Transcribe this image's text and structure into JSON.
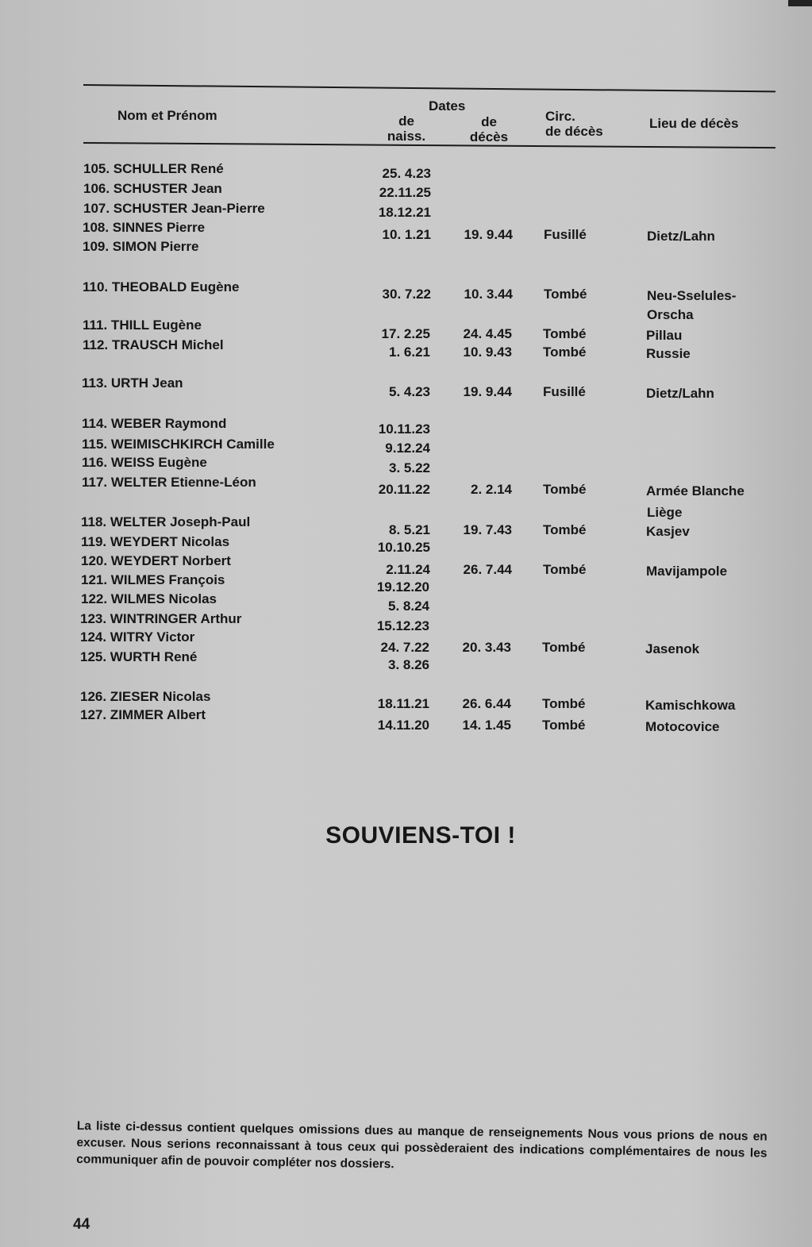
{
  "table": {
    "headers": {
      "name": "Nom et Prénom",
      "dates": "Dates",
      "birth_line1": "de",
      "birth_line2": "naiss.",
      "death_line1": "de",
      "death_line2": "décès",
      "circ_line1": "Circ.",
      "circ_line2": "de décès",
      "place": "Lieu de décès"
    },
    "rows": [
      {
        "name": "105. SCHULLER René",
        "birth": "25. 4.23",
        "death": "",
        "circ": "",
        "place": ""
      },
      {
        "name": "106. SCHUSTER Jean",
        "birth": "22.11.25",
        "death": "",
        "circ": "",
        "place": ""
      },
      {
        "name": "107. SCHUSTER Jean-Pierre",
        "birth": "18.12.21",
        "death": "",
        "circ": "",
        "place": ""
      },
      {
        "name": "108. SINNES Pierre",
        "birth": "10. 1.21",
        "death": "19. 9.44",
        "circ": "Fusillé",
        "place": "Dietz/Lahn"
      },
      {
        "name": "109. SIMON Pierre",
        "birth": "",
        "death": "",
        "circ": "",
        "place": ""
      },
      {
        "name": "110. THEOBALD Eugène",
        "birth": "30. 7.22",
        "death": "10. 3.44",
        "circ": "Tombé",
        "place": "Neu-Sselules-",
        "place2": "Orscha"
      },
      {
        "name": "111. THILL Eugène",
        "birth": "17. 2.25",
        "death": "24. 4.45",
        "circ": "Tombé",
        "place": "Pillau"
      },
      {
        "name": "112. TRAUSCH Michel",
        "birth": "1. 6.21",
        "death": "10. 9.43",
        "circ": "Tombé",
        "place": "Russie"
      },
      {
        "name": "113. URTH Jean",
        "birth": "5. 4.23",
        "death": "19. 9.44",
        "circ": "Fusillé",
        "place": "Dietz/Lahn"
      },
      {
        "name": "114. WEBER Raymond",
        "birth": "10.11.23",
        "death": "",
        "circ": "",
        "place": ""
      },
      {
        "name": "115. WEIMISCHKIRCH Camille",
        "birth": "9.12.24",
        "death": "",
        "circ": "",
        "place": ""
      },
      {
        "name": "116. WEISS Eugène",
        "birth": "3. 5.22",
        "death": "",
        "circ": "",
        "place": ""
      },
      {
        "name": "117. WELTER Etienne-Léon",
        "birth": "20.11.22",
        "death": "2. 2.14",
        "circ": "Tombé",
        "place": "Armée Blanche",
        "place2": "Liège"
      },
      {
        "name": "118. WELTER Joseph-Paul",
        "birth": "8. 5.21",
        "death": "19. 7.43",
        "circ": "Tombé",
        "place": "Kasjev"
      },
      {
        "name": "119. WEYDERT Nicolas",
        "birth": "10.10.25",
        "death": "",
        "circ": "",
        "place": ""
      },
      {
        "name": "120. WEYDERT Norbert",
        "birth": "2.11.24",
        "death": "26. 7.44",
        "circ": "Tombé",
        "place": "Mavijampole"
      },
      {
        "name": "121. WILMES François",
        "birth": "19.12.20",
        "death": "",
        "circ": "",
        "place": ""
      },
      {
        "name": "122. WILMES Nicolas",
        "birth": "5. 8.24",
        "death": "",
        "circ": "",
        "place": ""
      },
      {
        "name": "123. WINTRINGER Arthur",
        "birth": "15.12.23",
        "death": "",
        "circ": "",
        "place": ""
      },
      {
        "name": "124. WITRY Victor",
        "birth": "24. 7.22",
        "death": "20. 3.43",
        "circ": "Tombé",
        "place": "Jasenok"
      },
      {
        "name": "125. WURTH René",
        "birth": "3. 8.26",
        "death": "",
        "circ": "",
        "place": ""
      },
      {
        "name": "126. ZIESER Nicolas",
        "birth": "18.11.21",
        "death": "26. 6.44",
        "circ": "Tombé",
        "place": "Kamischkowa"
      },
      {
        "name": "127. ZIMMER Albert",
        "birth": "14.11.20",
        "death": "14. 1.45",
        "circ": "Tombé",
        "place": "Motocovice"
      }
    ]
  },
  "title": "SOUVIENS-TOI !",
  "note": "La liste ci-dessus contient quelques omissions dues au manque de renseignements Nous vous prions de nous en excuser. Nous serions reconnaissant à tous ceux qui possèderaient des indications complémentaires de nous les communiquer afin de pouvoir compléter nos dossiers.",
  "page_number": "44"
}
